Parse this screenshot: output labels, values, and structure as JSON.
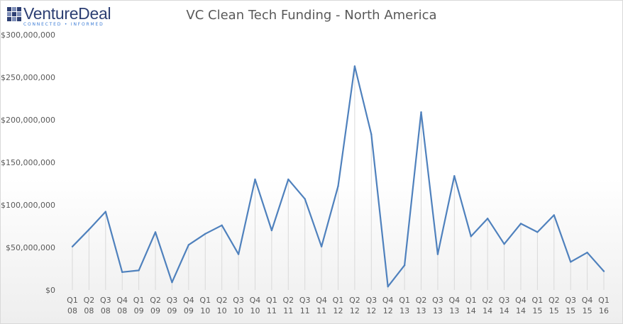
{
  "logo": {
    "name": "VentureDeal",
    "tagline": "CONNECTED • INFORMED"
  },
  "chart_data": {
    "type": "line",
    "title": "VC Clean Tech Funding - North America",
    "xlabel": "",
    "ylabel": "",
    "ylim": [
      0,
      300000000
    ],
    "yticks": [
      {
        "value": 0,
        "label": "$0"
      },
      {
        "value": 50000000,
        "label": "$50,000,000"
      },
      {
        "value": 100000000,
        "label": "$100,000,000"
      },
      {
        "value": 150000000,
        "label": "$150,000,000"
      },
      {
        "value": 200000000,
        "label": "$200,000,000"
      },
      {
        "value": 250000000,
        "label": "$250,000,000"
      },
      {
        "value": 300000000,
        "label": "$300,000,000"
      }
    ],
    "categories": [
      [
        "Q1",
        "08"
      ],
      [
        "Q2",
        "08"
      ],
      [
        "Q3",
        "08"
      ],
      [
        "Q4",
        "08"
      ],
      [
        "Q1",
        "09"
      ],
      [
        "Q2",
        "09"
      ],
      [
        "Q3",
        "09"
      ],
      [
        "Q4",
        "09"
      ],
      [
        "Q1",
        "10"
      ],
      [
        "Q2",
        "10"
      ],
      [
        "Q3",
        "10"
      ],
      [
        "Q4",
        "10"
      ],
      [
        "Q1",
        "11"
      ],
      [
        "Q2",
        "11"
      ],
      [
        "Q3",
        "11"
      ],
      [
        "Q4",
        "11"
      ],
      [
        "Q1",
        "12"
      ],
      [
        "Q2",
        "12"
      ],
      [
        "Q3",
        "12"
      ],
      [
        "Q4",
        "12"
      ],
      [
        "Q1",
        "13"
      ],
      [
        "Q2",
        "13"
      ],
      [
        "Q3",
        "13"
      ],
      [
        "Q4",
        "13"
      ],
      [
        "Q1",
        "14"
      ],
      [
        "Q2",
        "14"
      ],
      [
        "Q3",
        "14"
      ],
      [
        "Q4",
        "14"
      ],
      [
        "Q1",
        "15"
      ],
      [
        "Q2",
        "15"
      ],
      [
        "Q3",
        "15"
      ],
      [
        "Q4",
        "15"
      ],
      [
        "Q1",
        "16"
      ]
    ],
    "series": [
      {
        "values": [
          51000000,
          71000000,
          92000000,
          21000000,
          23000000,
          68000000,
          9000000,
          53000000,
          66000000,
          76000000,
          42000000,
          130000000,
          70000000,
          130000000,
          107000000,
          51000000,
          122000000,
          263000000,
          183000000,
          4000000,
          29000000,
          209000000,
          42000000,
          134000000,
          63000000,
          84000000,
          54000000,
          78000000,
          68000000,
          88000000,
          33000000,
          44000000,
          22000000
        ]
      }
    ],
    "colors": {
      "line": "#4f81bd",
      "drop_lines": "#d9d9d9",
      "title": "#595959",
      "axis_text": "#595959"
    },
    "grid": false,
    "drop_lines": true,
    "legend": "none"
  }
}
